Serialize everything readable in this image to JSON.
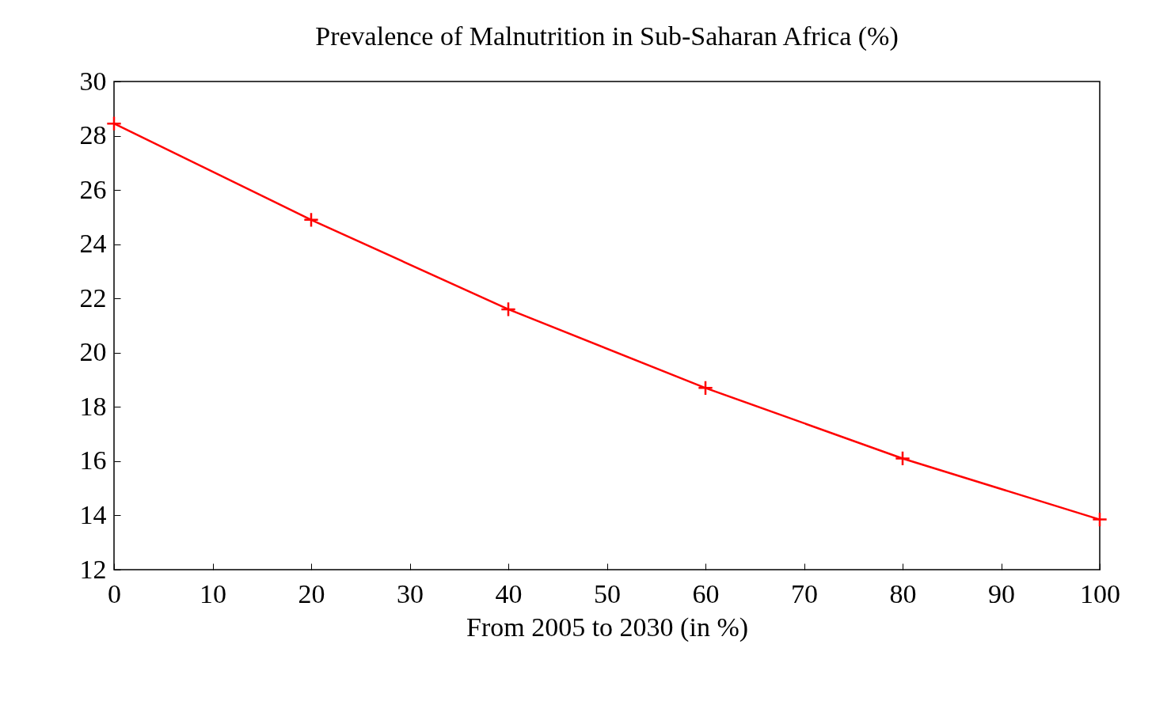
{
  "chart_data": {
    "type": "line",
    "title": "Prevalence of Malnutrition in Sub-Saharan Africa (%)",
    "xlabel": "From 2005 to 2030 (in %)",
    "x": [
      0,
      20,
      40,
      60,
      80,
      100
    ],
    "series": [
      {
        "color": "#ff0000",
        "values": [
          28.45,
          24.9,
          21.6,
          18.7,
          16.1,
          13.85
        ]
      }
    ],
    "xlim": [
      0,
      100
    ],
    "xticks": [
      0,
      10,
      20,
      30,
      40,
      50,
      60,
      70,
      80,
      90,
      100
    ],
    "ylim": [
      12,
      30
    ],
    "yticks": [
      12,
      14,
      16,
      18,
      20,
      22,
      24,
      26,
      28,
      30
    ],
    "marker": "cross",
    "line_style": "solid",
    "grid": false,
    "legend": false
  }
}
